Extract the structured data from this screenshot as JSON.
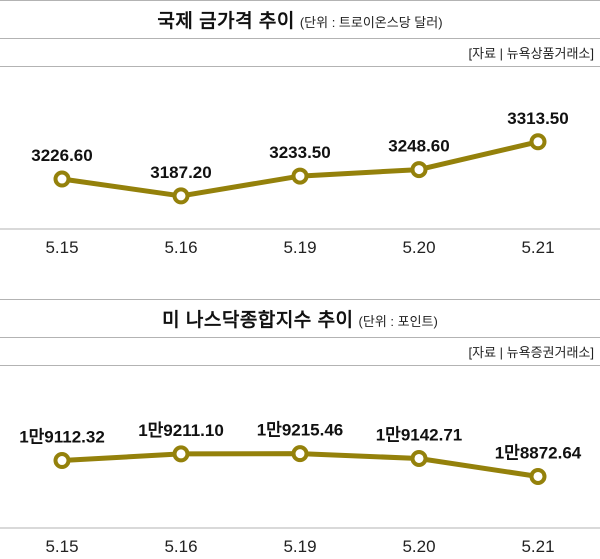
{
  "page": {
    "background": "#ffffff",
    "rule_color": "#b3b3b3"
  },
  "chart_data": [
    {
      "type": "line",
      "title": "국제 금가격 추이",
      "unit_label": "(단위 : 트로이온스당 달러)",
      "source": "[자료 | 뉴욕상품거래소]",
      "categories": [
        "5.15",
        "5.16",
        "5.19",
        "5.20",
        "5.21"
      ],
      "values": [
        3226.6,
        3187.2,
        3233.5,
        3248.6,
        3313.5
      ],
      "point_labels": [
        "3226.60",
        "3187.20",
        "3233.50",
        "3248.60",
        "3313.50"
      ],
      "ylim": [
        3180,
        3320
      ],
      "line_color": "#94810b",
      "marker_fill": "#ffffff",
      "grid": false,
      "legend": "none"
    },
    {
      "type": "line",
      "title": "미 나스닥종합지수 추이",
      "unit_label": "(단위 : 포인트)",
      "source": "[자료 | 뉴욕증권거래소]",
      "categories": [
        "5.15",
        "5.16",
        "5.19",
        "5.20",
        "5.21"
      ],
      "values": [
        19112.32,
        19211.1,
        19215.46,
        19142.71,
        18872.64
      ],
      "point_labels": [
        "1만9112.32",
        "1만9211.10",
        "1만9215.46",
        "1만9142.71",
        "1만8872.64"
      ],
      "ylim": [
        18550,
        19450
      ],
      "line_color": "#94810b",
      "marker_fill": "#ffffff",
      "grid": false,
      "legend": "none"
    }
  ]
}
